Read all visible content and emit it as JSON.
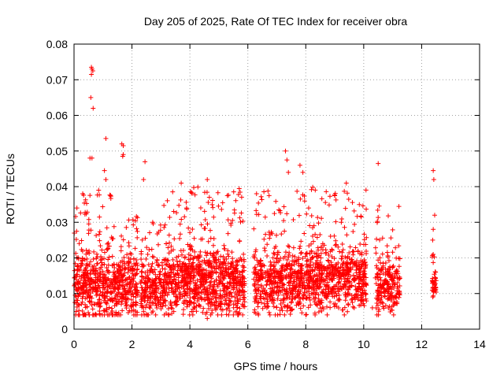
{
  "chart_data": {
    "type": "scatter",
    "title": "Day 205 of 2025, Rate Of TEC Index for receiver obra",
    "xlabel": "GPS time / hours",
    "ylabel": "ROTI / TECUs",
    "xlim": [
      0,
      14
    ],
    "ylim": [
      0,
      0.08
    ],
    "xticks": [
      "0",
      "2",
      "4",
      "6",
      "8",
      "10",
      "12",
      "14"
    ],
    "yticks": [
      "0",
      "0.01",
      "0.02",
      "0.03",
      "0.04",
      "0.05",
      "0.06",
      "0.07",
      "0.08"
    ],
    "grid": true,
    "marker": "plus",
    "color": "#ff0000",
    "clusters": [
      {
        "x": [
          0.0,
          1.35
        ],
        "base": 0.012,
        "spread": 0.01,
        "top": 0.038,
        "n": 420
      },
      {
        "x": [
          1.35,
          2.2
        ],
        "base": 0.012,
        "spread": 0.009,
        "top": 0.032,
        "n": 260
      },
      {
        "x": [
          2.3,
          3.1
        ],
        "base": 0.011,
        "spread": 0.008,
        "top": 0.03,
        "n": 220
      },
      {
        "x": [
          3.1,
          5.9
        ],
        "base": 0.013,
        "spread": 0.01,
        "top": 0.04,
        "n": 900
      },
      {
        "x": [
          6.2,
          8.0
        ],
        "base": 0.013,
        "spread": 0.009,
        "top": 0.04,
        "n": 520
      },
      {
        "x": [
          8.0,
          10.1
        ],
        "base": 0.014,
        "spread": 0.01,
        "top": 0.04,
        "n": 640
      },
      {
        "x": [
          10.4,
          11.25
        ],
        "base": 0.012,
        "spread": 0.008,
        "top": 0.036,
        "n": 220
      },
      {
        "x": [
          12.35,
          12.5
        ],
        "base": 0.013,
        "spread": 0.004,
        "top": 0.024,
        "n": 40
      }
    ],
    "outliers": [
      [
        0.6,
        0.0735
      ],
      [
        0.62,
        0.073
      ],
      [
        0.65,
        0.0725
      ],
      [
        0.6,
        0.0715
      ],
      [
        0.58,
        0.065
      ],
      [
        0.66,
        0.062
      ],
      [
        0.55,
        0.048
      ],
      [
        0.62,
        0.048
      ],
      [
        1.1,
        0.0535
      ],
      [
        1.65,
        0.052
      ],
      [
        1.7,
        0.0515
      ],
      [
        1.7,
        0.049
      ],
      [
        1.68,
        0.0485
      ],
      [
        2.45,
        0.047
      ],
      [
        2.4,
        0.042
      ],
      [
        1.05,
        0.0445
      ],
      [
        7.3,
        0.05
      ],
      [
        7.35,
        0.0475
      ],
      [
        7.4,
        0.044
      ],
      [
        7.8,
        0.046
      ],
      [
        7.9,
        0.044
      ],
      [
        10.5,
        0.0465
      ],
      [
        12.4,
        0.0445
      ],
      [
        12.42,
        0.042
      ],
      [
        12.45,
        0.032
      ],
      [
        12.4,
        0.028
      ],
      [
        12.38,
        0.025
      ],
      [
        0.1,
        0.034
      ],
      [
        0.3,
        0.038
      ],
      [
        0.85,
        0.039
      ],
      [
        1.1,
        0.042
      ],
      [
        3.7,
        0.041
      ],
      [
        4.6,
        0.042
      ],
      [
        6.3,
        0.038
      ],
      [
        8.1,
        0.034
      ],
      [
        9.4,
        0.041
      ],
      [
        4.1,
        0.004
      ],
      [
        2.4,
        0.005
      ],
      [
        4.6,
        0.003
      ],
      [
        10.3,
        0.006
      ]
    ]
  }
}
